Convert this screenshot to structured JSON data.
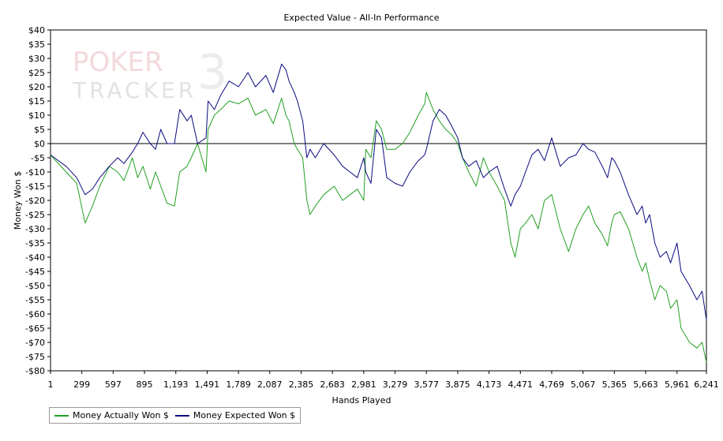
{
  "chart_data": {
    "type": "line",
    "title": "Expected Value - All-In Performance",
    "xlabel": "Hands Played",
    "ylabel": "Money Won $",
    "watermark": "POKER TRACKER 3",
    "xlim": [
      1,
      6241
    ],
    "ylim": [
      -80,
      40
    ],
    "x_ticks": [
      1,
      299,
      597,
      895,
      1193,
      1491,
      1789,
      2087,
      2385,
      2683,
      2981,
      3279,
      3577,
      3875,
      4173,
      4471,
      4769,
      5067,
      5365,
      5663,
      5961,
      6241
    ],
    "x_tick_labels": [
      "1",
      "299",
      "597",
      "895",
      "1,193",
      "1,491",
      "1,789",
      "2,087",
      "2,385",
      "2,683",
      "2,981",
      "3,279",
      "3,577",
      "3,875",
      "4,173",
      "4,471",
      "4,769",
      "5,067",
      "5,365",
      "5,663",
      "5,961",
      "6,241"
    ],
    "y_ticks": [
      40,
      35,
      30,
      25,
      20,
      15,
      10,
      5,
      0,
      -5,
      -10,
      -15,
      -20,
      -25,
      -30,
      -35,
      -40,
      -45,
      -50,
      -55,
      -60,
      -65,
      -70,
      -75,
      -80
    ],
    "y_tick_labels": [
      "$40",
      "$35",
      "$30",
      "$25",
      "$20",
      "$15",
      "$10",
      "$5",
      "$0",
      "-$5",
      "-$10",
      "-$15",
      "-$20",
      "-$25",
      "-$30",
      "-$35",
      "-$40",
      "-$45",
      "-$50",
      "-$55",
      "-$60",
      "-$65",
      "-$70",
      "-$75",
      "-$80"
    ],
    "grid": false,
    "zero_line": true,
    "legend_position": "bottom-left",
    "series": [
      {
        "name": "Money Actually Won $",
        "color": "#22a022",
        "x": [
          1,
          150,
          250,
          330,
          400,
          470,
          560,
          640,
          700,
          780,
          830,
          880,
          950,
          1000,
          1050,
          1110,
          1180,
          1230,
          1300,
          1340,
          1400,
          1480,
          1500,
          1560,
          1620,
          1700,
          1790,
          1880,
          1950,
          2050,
          2120,
          2200,
          2240,
          2270,
          2320,
          2350,
          2400,
          2440,
          2470,
          2520,
          2600,
          2700,
          2780,
          2850,
          2920,
          2981,
          3000,
          3050,
          3100,
          3150,
          3200,
          3279,
          3350,
          3420,
          3500,
          3560,
          3577,
          3640,
          3700,
          3760,
          3820,
          3875,
          3920,
          3980,
          4050,
          4120,
          4173,
          4250,
          4320,
          4380,
          4420,
          4471,
          4520,
          4580,
          4640,
          4700,
          4769,
          4850,
          4930,
          5000,
          5067,
          5120,
          5180,
          5250,
          5300,
          5340,
          5365,
          5420,
          5500,
          5580,
          5630,
          5663,
          5700,
          5750,
          5800,
          5860,
          5900,
          5961,
          6000,
          6080,
          6150,
          6200,
          6241
        ],
        "values": [
          -4,
          -10,
          -14,
          -28,
          -22,
          -15,
          -8,
          -10,
          -13,
          -5,
          -12,
          -8,
          -16,
          -10,
          -15,
          -21,
          -22,
          -10,
          -8,
          -5,
          0,
          -10,
          5,
          10,
          12,
          15,
          14,
          16,
          10,
          12,
          7,
          16,
          10,
          8,
          0,
          -2,
          -5,
          -20,
          -25,
          -22,
          -18,
          -15,
          -20,
          -18,
          -16,
          -20,
          -2,
          -5,
          8,
          5,
          -2,
          -2,
          0,
          4,
          10,
          14,
          18,
          12,
          8,
          5,
          3,
          0,
          -5,
          -10,
          -15,
          -5,
          -10,
          -15,
          -20,
          -35,
          -40,
          -30,
          -28,
          -25,
          -30,
          -20,
          -18,
          -30,
          -38,
          -30,
          -25,
          -22,
          -28,
          -32,
          -36,
          -28,
          -25,
          -24,
          -30,
          -40,
          -45,
          -42,
          -48,
          -55,
          -50,
          -52,
          -58,
          -55,
          -65,
          -70,
          -72,
          -70,
          -77
        ]
      },
      {
        "name": "Money Expected Won $",
        "color": "#0a0a80",
        "x": [
          1,
          150,
          250,
          330,
          400,
          470,
          560,
          640,
          700,
          780,
          830,
          880,
          950,
          1000,
          1050,
          1110,
          1180,
          1230,
          1300,
          1340,
          1400,
          1480,
          1500,
          1560,
          1620,
          1700,
          1790,
          1880,
          1950,
          2050,
          2120,
          2200,
          2240,
          2270,
          2320,
          2350,
          2400,
          2440,
          2470,
          2520,
          2600,
          2700,
          2780,
          2850,
          2920,
          2981,
          3000,
          3050,
          3100,
          3150,
          3200,
          3279,
          3350,
          3420,
          3500,
          3560,
          3577,
          3640,
          3700,
          3760,
          3820,
          3875,
          3920,
          3980,
          4050,
          4120,
          4173,
          4250,
          4320,
          4380,
          4420,
          4471,
          4520,
          4580,
          4640,
          4700,
          4769,
          4850,
          4930,
          5000,
          5067,
          5120,
          5180,
          5250,
          5300,
          5340,
          5365,
          5420,
          5500,
          5580,
          5630,
          5663,
          5700,
          5750,
          5800,
          5860,
          5900,
          5961,
          6000,
          6080,
          6150,
          6200,
          6241
        ],
        "values": [
          -4,
          -8,
          -12,
          -18,
          -16,
          -12,
          -8,
          -5,
          -7,
          -3,
          0,
          4,
          0,
          -2,
          5,
          0,
          0,
          12,
          8,
          10,
          0,
          2,
          15,
          12,
          17,
          22,
          20,
          25,
          20,
          24,
          18,
          28,
          26,
          22,
          18,
          15,
          8,
          -5,
          -2,
          -5,
          0,
          -4,
          -8,
          -10,
          -12,
          -5,
          -10,
          -14,
          5,
          2,
          -12,
          -14,
          -15,
          -10,
          -6,
          -4,
          -2,
          8,
          12,
          10,
          6,
          2,
          -5,
          -8,
          -6,
          -12,
          -10,
          -8,
          -16,
          -22,
          -18,
          -15,
          -10,
          -4,
          -2,
          -6,
          2,
          -8,
          -5,
          -4,
          0,
          -2,
          -3,
          -8,
          -12,
          -5,
          -6,
          -10,
          -18,
          -25,
          -22,
          -28,
          -25,
          -35,
          -40,
          -38,
          -42,
          -35,
          -45,
          -50,
          -55,
          -52,
          -62
        ]
      }
    ]
  }
}
